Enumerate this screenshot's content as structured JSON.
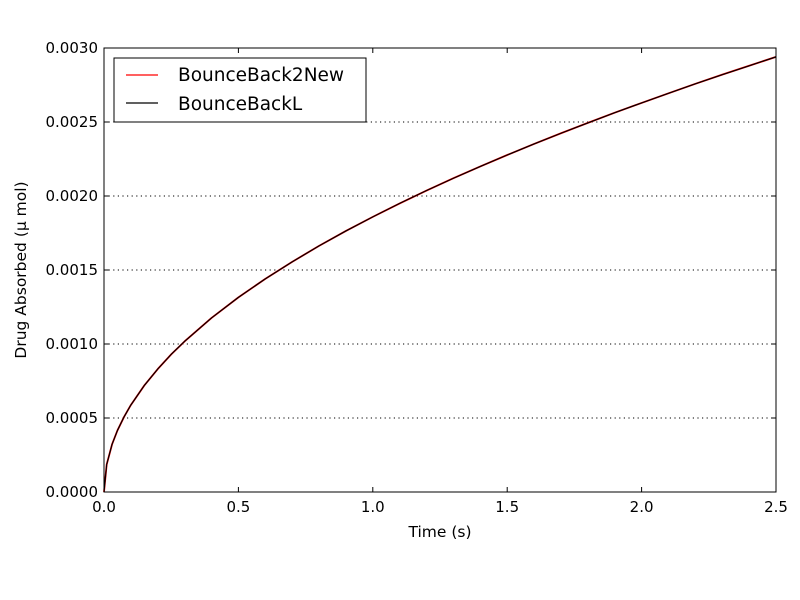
{
  "chart_data": {
    "type": "line",
    "title": "",
    "xlabel": "Time (s)",
    "ylabel": "Drug Absorbed (μ mol)",
    "xlim": [
      0.0,
      2.5
    ],
    "ylim": [
      0.0,
      0.003
    ],
    "xticks": [
      0.0,
      0.5,
      1.0,
      1.5,
      2.0,
      2.5
    ],
    "xtick_labels": [
      "0.0",
      "0.5",
      "1.0",
      "1.5",
      "2.0",
      "2.5"
    ],
    "yticks": [
      0.0,
      0.0005,
      0.001,
      0.0015,
      0.002,
      0.0025,
      0.003
    ],
    "ytick_labels": [
      "0.0000",
      "0.0005",
      "0.0010",
      "0.0015",
      "0.0020",
      "0.0025",
      "0.0030"
    ],
    "grid": "horizontal dotted",
    "legend_position": "top-left",
    "x": [
      0.0,
      0.01,
      0.03,
      0.05,
      0.075,
      0.1,
      0.15,
      0.2,
      0.25,
      0.3,
      0.4,
      0.5,
      0.6,
      0.7,
      0.8,
      0.9,
      1.0,
      1.1,
      1.2,
      1.3,
      1.4,
      1.5,
      1.6,
      1.7,
      1.8,
      1.9,
      2.0,
      2.1,
      2.2,
      2.3,
      2.4,
      2.5
    ],
    "series": [
      {
        "name": "BounceBack2New",
        "color": "#ff0000",
        "values": [
          0.0,
          0.000186,
          0.000322,
          0.000416,
          0.000509,
          0.000588,
          0.00072,
          0.000831,
          0.00093,
          0.001018,
          0.001176,
          0.001315,
          0.00144,
          0.001555,
          0.001663,
          0.001764,
          0.001859,
          0.00195,
          0.002037,
          0.00212,
          0.0022,
          0.002277,
          0.002352,
          0.002424,
          0.002494,
          0.002563,
          0.002629,
          0.002694,
          0.002758,
          0.00282,
          0.00288,
          0.00294
        ]
      },
      {
        "name": "BounceBackL",
        "color": "#000000",
        "values": [
          0.0,
          0.000186,
          0.000322,
          0.000416,
          0.000509,
          0.000588,
          0.00072,
          0.000831,
          0.00093,
          0.001018,
          0.001176,
          0.001315,
          0.00144,
          0.001555,
          0.001663,
          0.001764,
          0.001859,
          0.00195,
          0.002037,
          0.00212,
          0.0022,
          0.002277,
          0.002352,
          0.002424,
          0.002494,
          0.002563,
          0.002629,
          0.002694,
          0.002758,
          0.00282,
          0.00288,
          0.00294
        ]
      }
    ]
  }
}
